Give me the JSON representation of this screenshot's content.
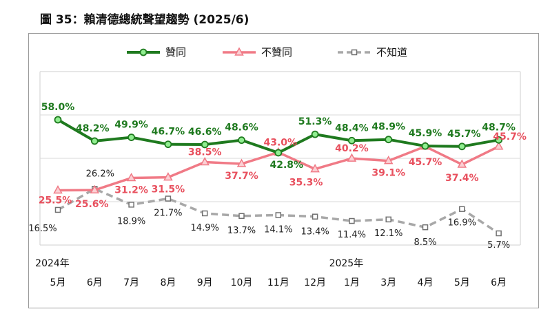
{
  "figure_title": "圖 35：賴清德總統聲望趨勢  (2025/6)",
  "colors": {
    "approve": "#1f7a1f",
    "approve_marker": "#90ee90",
    "disapprove": "#f07a86",
    "unknown": "#a8a8a8"
  },
  "chart_data": {
    "type": "line",
    "title": "圖 35：賴清德總統聲望趨勢  (2025/6)",
    "categories": [
      "5月",
      "6月",
      "7月",
      "8月",
      "9月",
      "10月",
      "11月",
      "12月",
      "1月",
      "3月",
      "4月",
      "5月",
      "6月"
    ],
    "year_labels": [
      {
        "label": "2024年",
        "index": 0
      },
      {
        "label": "2025年",
        "index": 8
      }
    ],
    "ylim": [
      0,
      70
    ],
    "grid": true,
    "legend_position": "top",
    "series": [
      {
        "name": "贊同",
        "color": "#1f7a1f",
        "values": [
          58.0,
          48.2,
          49.9,
          46.7,
          46.6,
          48.6,
          42.8,
          51.3,
          48.4,
          48.9,
          45.9,
          45.7,
          48.7
        ],
        "labels": [
          "58.0%",
          "48.2%",
          "49.9%",
          "46.7%",
          "46.6%",
          "48.6%",
          "42.8%",
          "51.3%",
          "48.4%",
          "48.9%",
          "45.9%",
          "45.7%",
          "48.7%"
        ]
      },
      {
        "name": "不贊同",
        "color": "#f07a86",
        "values": [
          25.5,
          25.6,
          31.2,
          31.5,
          38.5,
          37.7,
          43.0,
          35.3,
          40.2,
          39.1,
          45.7,
          37.4,
          45.7
        ],
        "labels": [
          "25.5%",
          "25.6%",
          "31.2%",
          "31.5%",
          "38.5%",
          "37.7%",
          "43.0%",
          "35.3%",
          "40.2%",
          "39.1%",
          "45.7%",
          "37.4%",
          "45.7%"
        ]
      },
      {
        "name": "不知道",
        "color": "#a8a8a8",
        "values": [
          16.5,
          26.2,
          18.9,
          21.7,
          14.9,
          13.7,
          14.1,
          13.4,
          11.4,
          12.1,
          8.5,
          16.9,
          5.7
        ],
        "labels": [
          "16.5%",
          "26.2%",
          "18.9%",
          "21.7%",
          "14.9%",
          "13.7%",
          "14.1%",
          "13.4%",
          "11.4%",
          "12.1%",
          "8.5%",
          "16.9%",
          "5.7%"
        ]
      }
    ]
  }
}
